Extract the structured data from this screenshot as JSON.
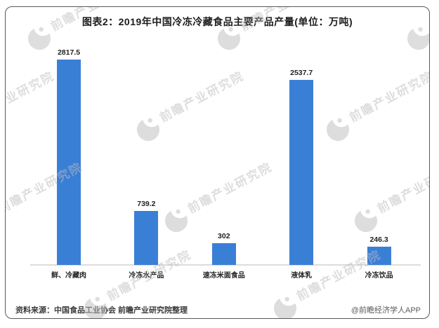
{
  "title": "图表2：2019年中国冷冻冷藏食品主要产品产量(单位：万吨)",
  "chart_data": {
    "type": "bar",
    "title": "图表2：2019年中国冷冻冷藏食品主要产品产量(单位：万吨)",
    "categories": [
      "鲜、冷藏肉",
      "冷冻水产品",
      "速冻米面食品",
      "液体乳",
      "冷冻饮品"
    ],
    "values": [
      2817.5,
      739.2,
      302,
      2537.7,
      246.3
    ],
    "value_labels": [
      "2817.5",
      "739.2",
      "302",
      "2537.7",
      "246.3"
    ],
    "unit": "万吨",
    "xlabel": "",
    "ylabel": "",
    "ylim": [
      0,
      3000
    ],
    "grid": false,
    "legend": false,
    "bar_color": "#3a7fd6"
  },
  "watermark": {
    "text": "前瞻产业研究院",
    "logo": "qianzhan-logo-icon",
    "color": "#bdbdbd"
  },
  "footer": {
    "source": "资料来源：中国食品工业协会 前瞻产业研究院整理",
    "brand": "@前瞻经济学人APP"
  }
}
